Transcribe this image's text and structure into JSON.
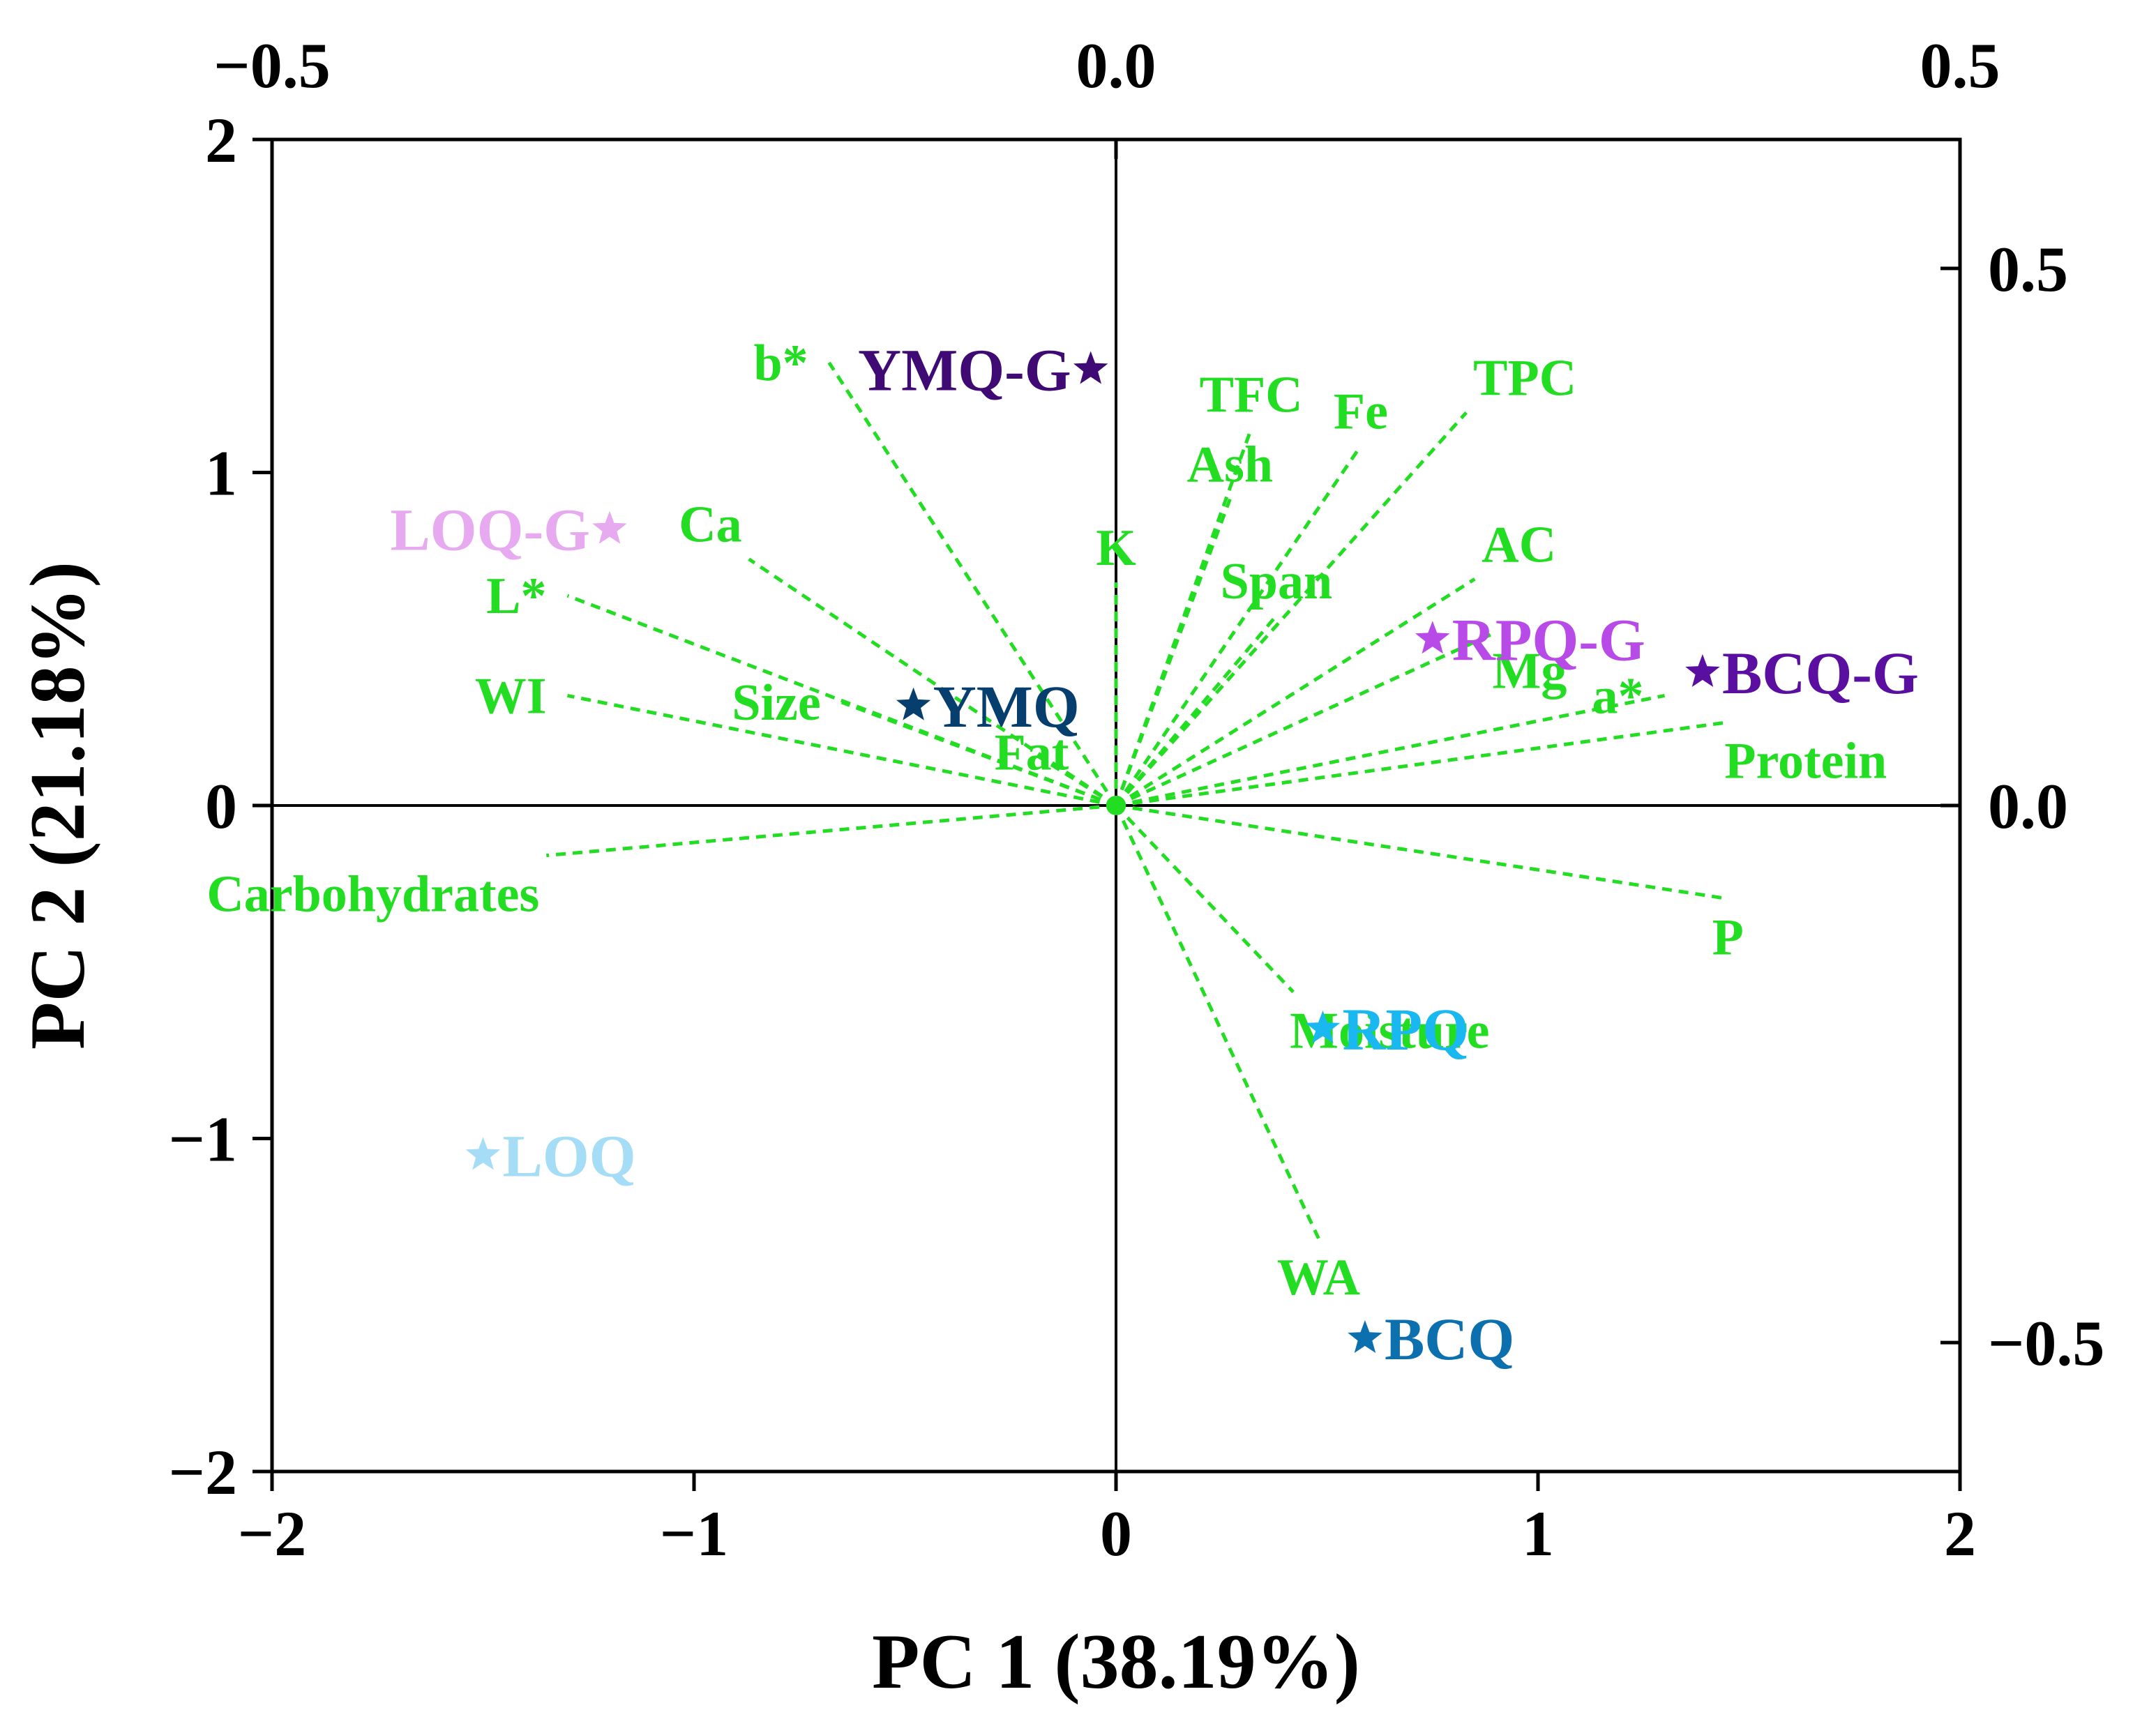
{
  "chart_data": {
    "type": "scatter",
    "subtype": "pca-biplot",
    "xlabel": "PC 1 (38.19%)",
    "ylabel": "PC 2 (21.18%)",
    "xlim": [
      -2,
      2
    ],
    "ylim": [
      -2,
      2
    ],
    "x_ticks": [
      {
        "value": -2,
        "label": "−2"
      },
      {
        "value": -1,
        "label": "−1"
      },
      {
        "value": 0,
        "label": "0"
      },
      {
        "value": 1,
        "label": "1"
      },
      {
        "value": 2,
        "label": "2"
      }
    ],
    "y_ticks": [
      {
        "value": -2,
        "label": "−2"
      },
      {
        "value": -1,
        "label": "−1"
      },
      {
        "value": 0,
        "label": "0"
      },
      {
        "value": 1,
        "label": "1"
      },
      {
        "value": 2,
        "label": "2"
      }
    ],
    "top_axis": {
      "lim": [
        -0.5,
        0.5
      ],
      "ticks": [
        {
          "value": -0.5,
          "label": "−0.5"
        },
        {
          "value": 0.0,
          "label": "0.0"
        },
        {
          "value": 0.5,
          "label": "0.5"
        }
      ]
    },
    "right_axis": {
      "lim": [
        -0.62,
        0.62
      ],
      "ticks": [
        {
          "value": -0.5,
          "label": "−0.5"
        },
        {
          "value": 0.0,
          "label": "0.0"
        },
        {
          "value": 0.5,
          "label": "0.5"
        }
      ]
    },
    "loading_color": "#22dd22",
    "loadings": [
      {
        "name": "b*",
        "x": -0.68,
        "y": 1.33,
        "label_pos": "left"
      },
      {
        "name": "Ca",
        "x": -0.87,
        "y": 0.74,
        "label_pos": "above-left"
      },
      {
        "name": "L*",
        "x": -1.3,
        "y": 0.63,
        "label_pos": "left"
      },
      {
        "name": "WI",
        "x": -1.3,
        "y": 0.33,
        "label_pos": "left"
      },
      {
        "name": "Size",
        "x": -0.65,
        "y": 0.31,
        "label_pos": "left"
      },
      {
        "name": "Fat",
        "x": -0.2,
        "y": 0.16,
        "label_pos": "center"
      },
      {
        "name": "Carbohydrates",
        "x": -1.35,
        "y": -0.15,
        "label_pos": "below-left"
      },
      {
        "name": "K",
        "x": 0.0,
        "y": 0.67,
        "label_pos": "above"
      },
      {
        "name": "Ash",
        "x": 0.27,
        "y": 0.92,
        "label_pos": "above"
      },
      {
        "name": "TFC",
        "x": 0.32,
        "y": 1.13,
        "label_pos": "above"
      },
      {
        "name": "Fe",
        "x": 0.58,
        "y": 1.08,
        "label_pos": "above"
      },
      {
        "name": "TPC",
        "x": 0.83,
        "y": 1.18,
        "label_pos": "above-right"
      },
      {
        "name": "Span",
        "x": 0.38,
        "y": 0.57,
        "label_pos": "above"
      },
      {
        "name": "AC",
        "x": 0.85,
        "y": 0.68,
        "label_pos": "above-right"
      },
      {
        "name": "Mg",
        "x": 0.9,
        "y": 0.52,
        "label_pos": "below-right"
      },
      {
        "name": "a*",
        "x": 1.3,
        "y": 0.33,
        "label_pos": "left"
      },
      {
        "name": "Protein",
        "x": 1.45,
        "y": 0.25,
        "label_pos": "below-right"
      },
      {
        "name": "P",
        "x": 1.45,
        "y": -0.28,
        "label_pos": "below"
      },
      {
        "name": "Moisture",
        "x": 0.42,
        "y": -0.56,
        "label_pos": "below-right"
      },
      {
        "name": "WA",
        "x": 0.48,
        "y": -1.3,
        "label_pos": "below"
      }
    ],
    "scores": [
      {
        "name": "YMQ-G",
        "x": -0.06,
        "y": 1.31,
        "color": "#3f0a73",
        "label_pos": "left"
      },
      {
        "name": "LOQ-G",
        "x": -1.2,
        "y": 0.83,
        "color": "#e7a9f0",
        "label_pos": "left"
      },
      {
        "name": "YMQ",
        "x": -0.48,
        "y": 0.3,
        "color": "#063e6e",
        "label_pos": "right"
      },
      {
        "name": "RPQ-G",
        "x": 0.75,
        "y": 0.5,
        "color": "#b84be8",
        "label_pos": "right"
      },
      {
        "name": "BCQ-G",
        "x": 1.39,
        "y": 0.4,
        "color": "#5a0fa0",
        "label_pos": "right"
      },
      {
        "name": "RPQ",
        "x": 0.49,
        "y": -0.67,
        "color": "#19b8f0",
        "label_pos": "right"
      },
      {
        "name": "LOQ",
        "x": -1.5,
        "y": -1.05,
        "color": "#a5dcf6",
        "label_pos": "right"
      },
      {
        "name": "BCQ",
        "x": 0.59,
        "y": -1.6,
        "color": "#0c6fae",
        "label_pos": "right"
      }
    ]
  }
}
